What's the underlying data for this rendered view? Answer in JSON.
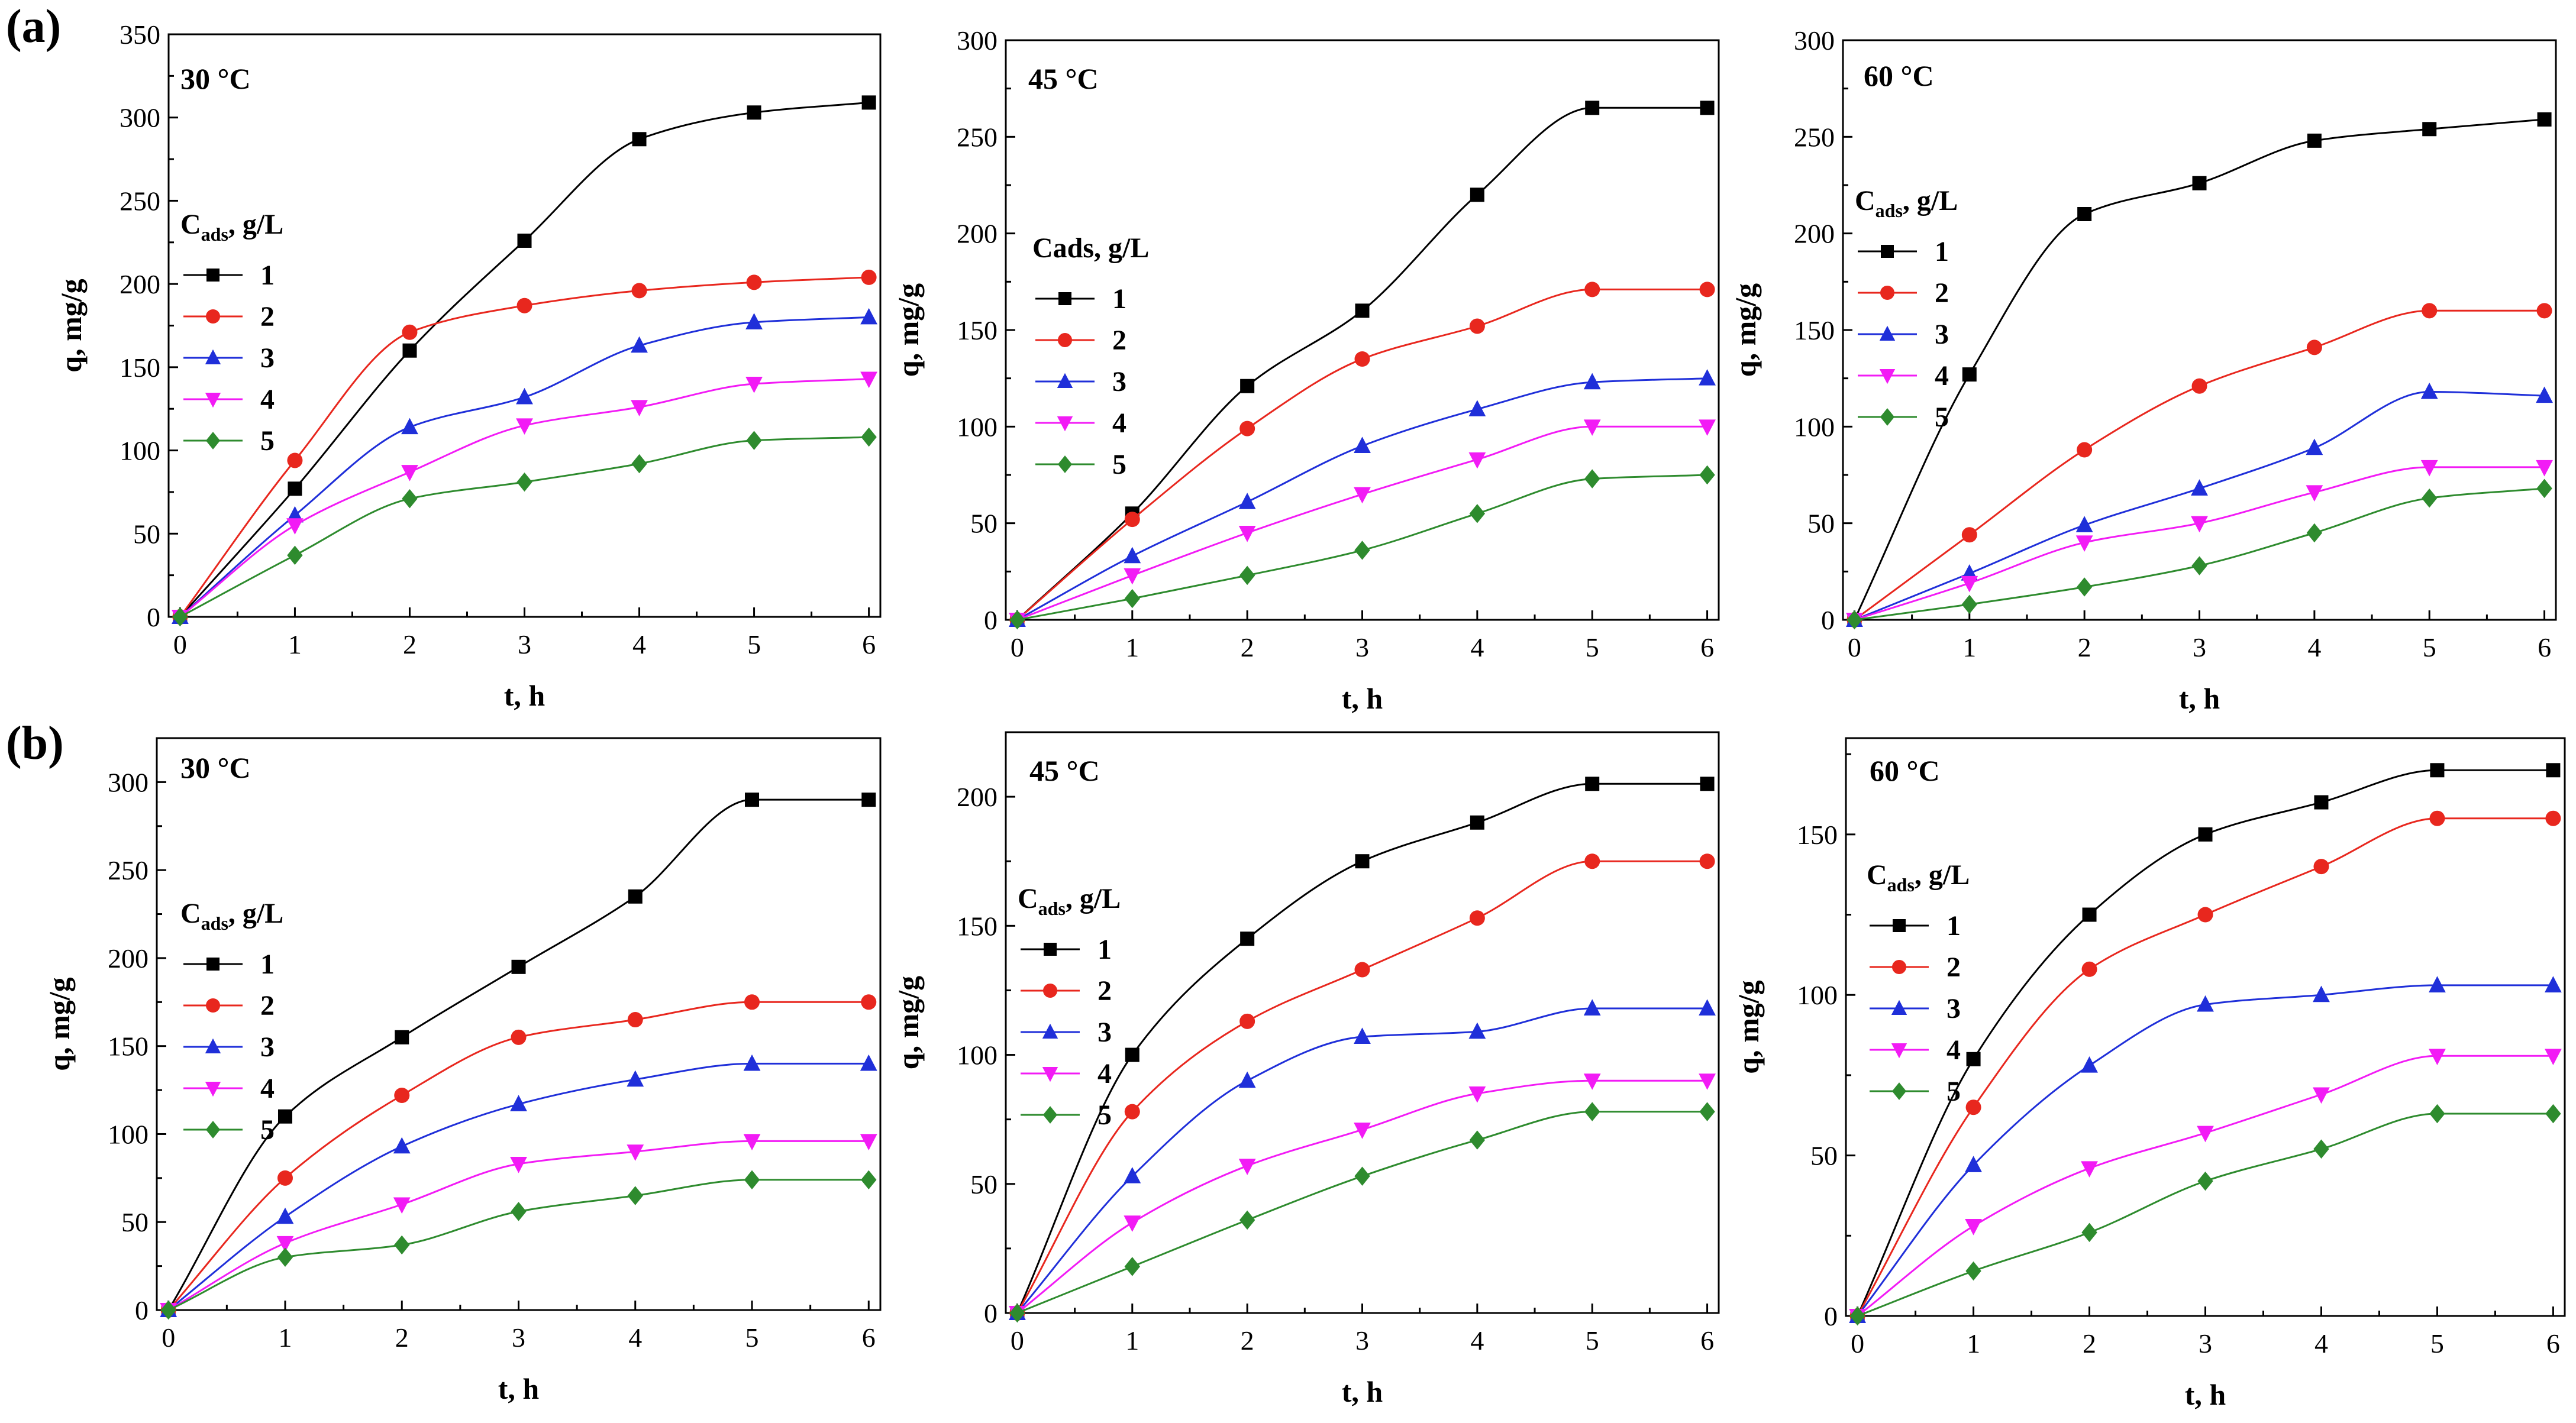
{
  "figure": {
    "row_labels": [
      "(a)",
      "(b)"
    ],
    "series_colors": [
      "#000000",
      "#e8271e",
      "#1f2fd9",
      "#f21bf5",
      "#2e8b2e"
    ],
    "marker_types": [
      "square",
      "circle",
      "triangle-up",
      "triangle-down",
      "diamond"
    ]
  },
  "chart_data": [
    {
      "type": "line",
      "panel": "a-30",
      "title": "30 °C",
      "xlabel": "t, h",
      "ylabel": "q, mg/g",
      "legend_title_main": "C",
      "legend_title_sub": "ads",
      "legend_title_rest": ", g/L",
      "x": [
        0,
        1,
        2,
        3,
        4,
        5,
        6
      ],
      "xlim": [
        -0.1,
        6.1
      ],
      "ylim": [
        0,
        350
      ],
      "xticks": [
        0,
        1,
        2,
        3,
        4,
        5,
        6
      ],
      "yticks": [
        0,
        50,
        100,
        150,
        200,
        250,
        300,
        350
      ],
      "series": [
        {
          "name": "1",
          "values": [
            0,
            77,
            160,
            226,
            287,
            303,
            309
          ]
        },
        {
          "name": "2",
          "values": [
            0,
            94,
            171,
            187,
            196,
            201,
            204
          ]
        },
        {
          "name": "3",
          "values": [
            0,
            61,
            114,
            132,
            163,
            177,
            180
          ]
        },
        {
          "name": "4",
          "values": [
            0,
            55,
            87,
            115,
            126,
            140,
            143
          ]
        },
        {
          "name": "5",
          "values": [
            0,
            37,
            71,
            81,
            92,
            106,
            108
          ]
        }
      ]
    },
    {
      "type": "line",
      "panel": "a-45",
      "title": "45 °C",
      "xlabel": "t, h",
      "ylabel": "q, mg/g",
      "legend_title_main": "Cads, g/L",
      "legend_title_sub": "",
      "legend_title_rest": "",
      "x": [
        0,
        1,
        2,
        3,
        4,
        5,
        6
      ],
      "xlim": [
        -0.1,
        6.1
      ],
      "ylim": [
        0,
        300
      ],
      "xticks": [
        0,
        1,
        2,
        3,
        4,
        5,
        6
      ],
      "yticks": [
        0,
        50,
        100,
        150,
        200,
        250,
        300
      ],
      "series": [
        {
          "name": "1",
          "values": [
            0,
            55,
            121,
            160,
            220,
            265,
            265
          ]
        },
        {
          "name": "2",
          "values": [
            0,
            52,
            99,
            135,
            152,
            171,
            171
          ]
        },
        {
          "name": "3",
          "values": [
            0,
            33,
            61,
            90,
            109,
            123,
            125
          ]
        },
        {
          "name": "4",
          "values": [
            0,
            23,
            45,
            65,
            83,
            100,
            100
          ]
        },
        {
          "name": "5",
          "values": [
            0,
            11,
            23,
            36,
            55,
            73,
            75
          ]
        }
      ]
    },
    {
      "type": "line",
      "panel": "a-60",
      "title": "60 °C",
      "xlabel": "t, h",
      "ylabel": "q, mg/g",
      "legend_title_main": "C",
      "legend_title_sub": "ads",
      "legend_title_rest": ", g/L",
      "x": [
        0,
        1,
        2,
        3,
        4,
        5,
        6
      ],
      "xlim": [
        -0.1,
        6.1
      ],
      "ylim": [
        0,
        300
      ],
      "xticks": [
        0,
        1,
        2,
        3,
        4,
        5,
        6
      ],
      "yticks": [
        0,
        50,
        100,
        150,
        200,
        250,
        300
      ],
      "series": [
        {
          "name": "1",
          "values": [
            0,
            127,
            210,
            226,
            248,
            254,
            259
          ]
        },
        {
          "name": "2",
          "values": [
            0,
            44,
            88,
            121,
            141,
            160,
            160
          ]
        },
        {
          "name": "3",
          "values": [
            0,
            24,
            49,
            68,
            89,
            118,
            116
          ]
        },
        {
          "name": "4",
          "values": [
            0,
            19,
            40,
            50,
            66,
            79,
            79
          ]
        },
        {
          "name": "5",
          "values": [
            0,
            8,
            17,
            28,
            45,
            63,
            68
          ]
        }
      ]
    },
    {
      "type": "line",
      "panel": "b-30",
      "title": "30 °C",
      "xlabel": "t, h",
      "ylabel": "q, mg/g",
      "legend_title_main": "C",
      "legend_title_sub": "ads",
      "legend_title_rest": ", g/L",
      "x": [
        0,
        1,
        2,
        3,
        4,
        5,
        6
      ],
      "xlim": [
        -0.1,
        6.1
      ],
      "ylim": [
        0,
        325
      ],
      "xticks": [
        0,
        1,
        2,
        3,
        4,
        5,
        6
      ],
      "yticks": [
        0,
        50,
        100,
        150,
        200,
        250,
        300
      ],
      "series": [
        {
          "name": "1",
          "values": [
            0,
            110,
            155,
            195,
            235,
            290,
            290
          ]
        },
        {
          "name": "2",
          "values": [
            0,
            75,
            122,
            155,
            165,
            175,
            175
          ]
        },
        {
          "name": "3",
          "values": [
            0,
            53,
            93,
            117,
            131,
            140,
            140
          ]
        },
        {
          "name": "4",
          "values": [
            0,
            38,
            60,
            83,
            90,
            96,
            96
          ]
        },
        {
          "name": "5",
          "values": [
            0,
            30,
            37,
            56,
            65,
            74,
            74
          ]
        }
      ]
    },
    {
      "type": "line",
      "panel": "b-45",
      "title": "45 °C",
      "xlabel": "t, h",
      "ylabel": "q, mg/g",
      "legend_title_main": "C",
      "legend_title_sub": "ads",
      "legend_title_rest": ", g/L",
      "x": [
        0,
        1,
        2,
        3,
        4,
        5,
        6
      ],
      "xlim": [
        -0.1,
        6.1
      ],
      "ylim": [
        0,
        225
      ],
      "xticks": [
        0,
        1,
        2,
        3,
        4,
        5,
        6
      ],
      "yticks": [
        0,
        50,
        100,
        150,
        200
      ],
      "series": [
        {
          "name": "1",
          "values": [
            0,
            100,
            145,
            175,
            190,
            205,
            205
          ]
        },
        {
          "name": "2",
          "values": [
            0,
            78,
            113,
            133,
            153,
            175,
            175
          ]
        },
        {
          "name": "3",
          "values": [
            0,
            53,
            90,
            107,
            109,
            118,
            118
          ]
        },
        {
          "name": "4",
          "values": [
            0,
            35,
            57,
            71,
            85,
            90,
            90
          ]
        },
        {
          "name": "5",
          "values": [
            0,
            18,
            36,
            53,
            67,
            78,
            78
          ]
        }
      ]
    },
    {
      "type": "line",
      "panel": "b-60",
      "title": "60 °C",
      "xlabel": "t, h",
      "ylabel": "q, mg/g",
      "legend_title_main": "C",
      "legend_title_sub": "ads",
      "legend_title_rest": ", g/L",
      "x": [
        0,
        1,
        2,
        3,
        4,
        5,
        6
      ],
      "xlim": [
        -0.1,
        6.1
      ],
      "ylim": [
        0,
        180
      ],
      "xticks": [
        0,
        1,
        2,
        3,
        4,
        5,
        6
      ],
      "yticks": [
        0,
        50,
        100,
        150
      ],
      "series": [
        {
          "name": "1",
          "values": [
            0,
            80,
            125,
            150,
            160,
            170,
            170
          ]
        },
        {
          "name": "2",
          "values": [
            0,
            65,
            108,
            125,
            140,
            155,
            155
          ]
        },
        {
          "name": "3",
          "values": [
            0,
            47,
            78,
            97,
            100,
            103,
            103
          ]
        },
        {
          "name": "4",
          "values": [
            0,
            28,
            46,
            57,
            69,
            81,
            81
          ]
        },
        {
          "name": "5",
          "values": [
            0,
            14,
            26,
            42,
            52,
            63,
            63
          ]
        }
      ]
    }
  ]
}
